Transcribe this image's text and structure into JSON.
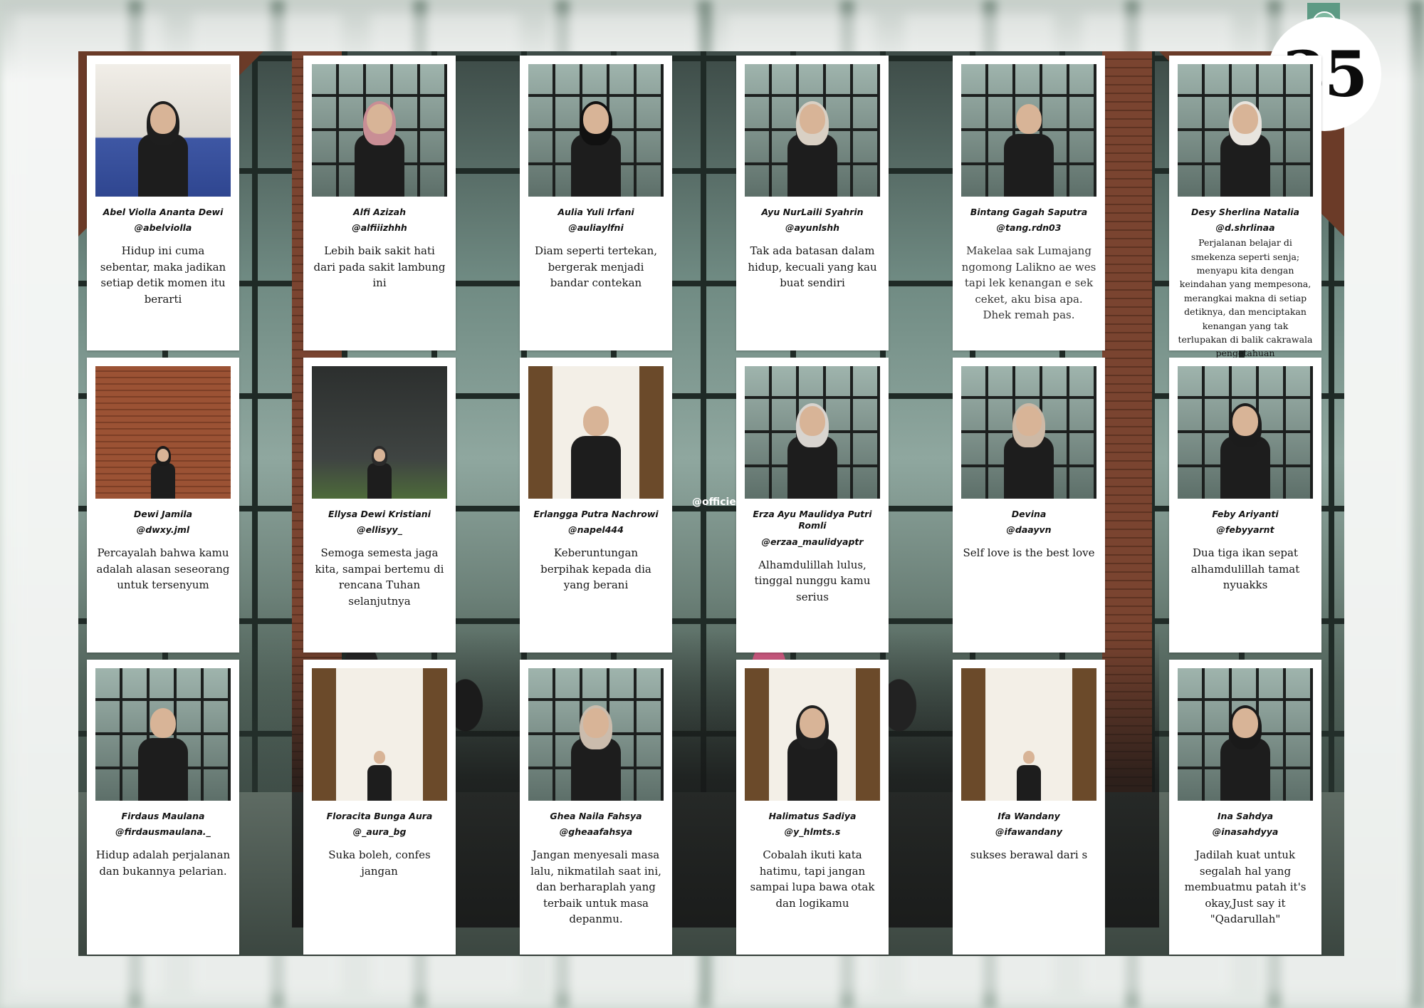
{
  "page_number": "35",
  "watermark": "@officie",
  "cards": [
    {
      "name": "Abel Violla Ananta Dewi",
      "handle": "@abelviolla",
      "quote": "Hidup ini cuma sebentar, maka jadikan setiap detik momen itu berarti"
    },
    {
      "name": "Alfi Azizah",
      "handle": "@alfiiizhhh",
      "quote": "Lebih baik sakit hati dari pada sakit lambung ini"
    },
    {
      "name": "Aulia Yuli Irfani",
      "handle": "@auliaylfni",
      "quote": "Diam seperti tertekan, bergerak menjadi bandar contekan"
    },
    {
      "name": "Ayu NurLaili Syahrin",
      "handle": "@ayunlshh",
      "quote": "Tak ada batasan dalam hidup, kecuali yang kau buat sendiri"
    },
    {
      "name": "Bintang Gagah Saputra",
      "handle": "@tang.rdn03",
      "quote": "Makelaa sak Lumajang ngomong Lalikno ae wes tapi lek kenangan e sek ceket, aku bisa apa. Dhek remah pas."
    },
    {
      "name": "Desy Sherlina Natalia",
      "handle": "@d.shrlinaa",
      "quote": "Perjalanan belajar di smekenza seperti senja; menyapu kita dengan keindahan yang mempesona, merangkai makna di setiap detiknya, dan menciptakan kenangan yang tak terlupakan di balik cakrawala pengetahuan"
    },
    {
      "name": "Dewi Jamila",
      "handle": "@dwxy.jml",
      "quote": "Percayalah bahwa kamu adalah alasan seseorang untuk tersenyum"
    },
    {
      "name": "Ellysa Dewi Kristiani",
      "handle": "@ellisyy_",
      "quote": "Semoga semesta jaga kita, sampai bertemu di rencana Tuhan selanjutnya"
    },
    {
      "name": "Erlangga Putra Nachrowi",
      "handle": "@napel444",
      "quote": "Keberuntungan berpihak kepada dia yang berani"
    },
    {
      "name": "Erza Ayu Maulidya Putri Romli",
      "handle": "@erzaa_maulidyaptr",
      "quote": "Alhamdulillah lulus, tinggal nunggu kamu serius"
    },
    {
      "name": "Devina",
      "handle": "@daayvn",
      "quote": "Self love is the best love"
    },
    {
      "name": "Feby Ariyanti",
      "handle": "@febyyarnt",
      "quote": "Dua tiga ikan sepat alhamdulillah tamat nyuakks"
    },
    {
      "name": "Firdaus Maulana",
      "handle": "@firdausmaulana._",
      "quote": "Hidup adalah perjalanan dan bukannya pelarian."
    },
    {
      "name": "Floracita Bunga Aura",
      "handle": "@_aura_bg",
      "quote": "Suka boleh, confes jangan"
    },
    {
      "name": "Ghea Naila Fahsya",
      "handle": "@gheaafahsya",
      "quote": "Jangan menyesali masa lalu, nikmatilah saat ini, dan berharaplah yang terbaik untuk masa depanmu."
    },
    {
      "name": "Halimatus Sadiya",
      "handle": "@y_hlmts.s",
      "quote": "Cobalah ikuti kata hatimu, tapi jangan sampai lupa bawa otak dan logikamu"
    },
    {
      "name": "Ifa Wandany",
      "handle": "@ifawandany",
      "quote": "sukses berawal dari s"
    },
    {
      "name": "Ina Sahdya",
      "handle": "@inasahdyya",
      "quote": "Jadilah kuat untuk segalah hal yang membuatmu patah it's okay,Just say it \"Qadarullah\""
    }
  ],
  "photo_styles": [
    "room",
    "window",
    "window",
    "window",
    "window",
    "window",
    "brick",
    "dark",
    "wood",
    "window",
    "window",
    "window",
    "window",
    "wood",
    "window",
    "wood",
    "wood",
    "window"
  ],
  "hijab_colors": [
    "#1e1e1e",
    "#c98e95",
    "#111111",
    "#d9d0c4",
    null,
    "#e8e4de",
    "#1b1b1b",
    "#2a2a2a",
    null,
    "#d8d4cf",
    "#cdb9a6",
    "#1c1c1c",
    null,
    null,
    "#cbbcad",
    "#202020",
    null,
    "#1a1a1a"
  ],
  "accent_color": "#5d9a84"
}
